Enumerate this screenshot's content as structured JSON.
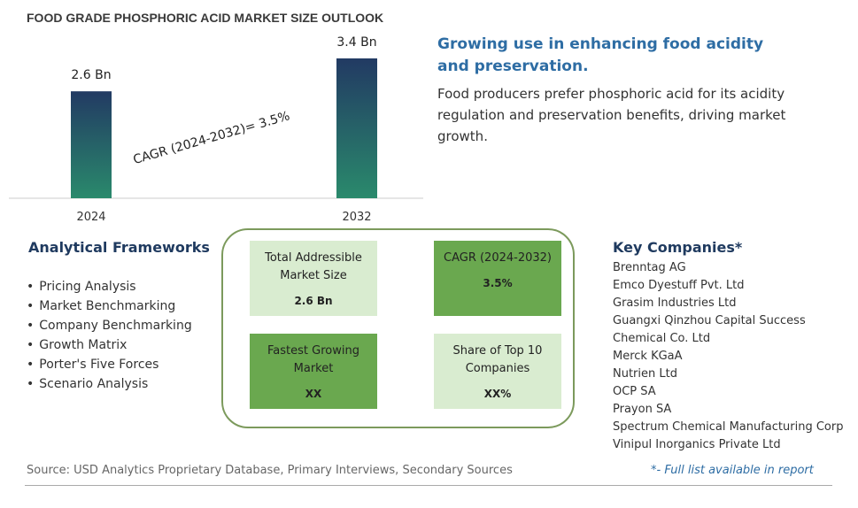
{
  "chart_data": {
    "type": "bar",
    "title": "FOOD GRADE PHOSPHORIC ACID MARKET SIZE OUTLOOK",
    "categories": [
      "2024",
      "2032"
    ],
    "values": [
      2.6,
      3.4
    ],
    "value_labels": [
      "2.6 Bn",
      "3.4 Bn"
    ],
    "annotation": "CAGR (2024-2032)=  3.5%"
  },
  "headline": "Growing use in enhancing food acidity and preservation.",
  "description": "Food producers prefer phosphoric acid for its acidity regulation and preservation benefits, driving market growth.",
  "frameworks": {
    "title": "Analytical Frameworks",
    "items": [
      "Pricing Analysis",
      "Market Benchmarking",
      "Company Benchmarking",
      "Growth Matrix",
      "Porter's Five Forces",
      "Scenario Analysis"
    ]
  },
  "boxes": [
    {
      "label": "Total Addressible Market Size",
      "value": "2.6 Bn"
    },
    {
      "label": "CAGR (2024-2032)",
      "value": "3.5%"
    },
    {
      "label": "Fastest Growing Market",
      "value": "XX"
    },
    {
      "label": "Share of Top 10 Companies",
      "value": "XX%"
    }
  ],
  "key_companies": {
    "title": "Key Companies*",
    "items": [
      "Brenntag AG",
      "Emco Dyestuff Pvt. Ltd",
      "Grasim Industries Ltd",
      "Guangxi Qinzhou Capital Success",
      "Chemical Co. Ltd",
      "Merck KGaA",
      "Nutrien Ltd",
      "OCP SA",
      "Prayon SA",
      "Spectrum Chemical Manufacturing Corp",
      "Vinipul Inorganics Private Ltd"
    ]
  },
  "source": "Source: USD Analytics Proprietary Database, Primary Interviews, Secondary Sources",
  "footnote": "*- Full list available in report"
}
